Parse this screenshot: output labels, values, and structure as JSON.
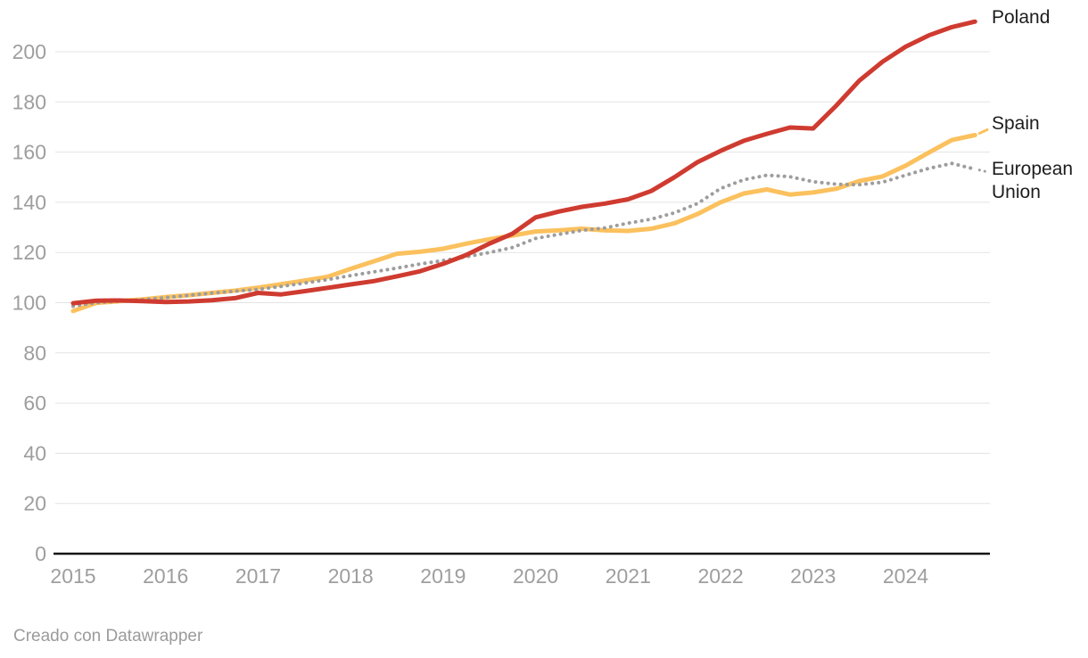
{
  "chart_data": {
    "type": "line",
    "title": "",
    "x_start": "2015-Q1",
    "x_frequency": "quarterly",
    "x_tick_labels": [
      "2015",
      "2016",
      "2017",
      "2018",
      "2019",
      "2020",
      "2021",
      "2022",
      "2023",
      "2024"
    ],
    "y_ticks": [
      0,
      20,
      40,
      60,
      80,
      100,
      120,
      140,
      160,
      180,
      200
    ],
    "ylim": [
      0,
      215
    ],
    "grid": "horizontal",
    "legend_position": "right-edge-direct-labels",
    "series": [
      {
        "name": "Poland",
        "color": "#cf3b30",
        "style": "solid",
        "values": [
          99.8,
          100.8,
          100.9,
          100.6,
          100.3,
          100.5,
          101.0,
          101.8,
          103.9,
          103.3,
          104.6,
          105.9,
          107.3,
          108.6,
          110.5,
          112.5,
          115.5,
          119.0,
          123.5,
          127.5,
          134.0,
          136.3,
          138.2,
          139.5,
          141.2,
          144.5,
          150.0,
          156.0,
          160.5,
          164.5,
          167.3,
          169.8,
          169.4,
          178.5,
          188.5,
          196.0,
          202.0,
          206.5,
          209.8,
          212.0
        ]
      },
      {
        "name": "Spain",
        "color": "#fbc15e",
        "style": "solid",
        "values": [
          96.7,
          99.9,
          100.6,
          101.3,
          102.2,
          103.0,
          103.9,
          104.8,
          106.0,
          107.4,
          108.8,
          110.3,
          113.5,
          116.5,
          119.5,
          120.3,
          121.5,
          123.5,
          125.3,
          126.8,
          128.4,
          128.8,
          129.5,
          128.8,
          128.6,
          129.5,
          131.6,
          135.3,
          140.0,
          143.5,
          145.1,
          143.1,
          143.9,
          145.4,
          148.5,
          150.3,
          154.6,
          159.8,
          164.8,
          166.8
        ]
      },
      {
        "name": "European Union",
        "color": "#9d9d9d",
        "style": "dotted",
        "values": [
          98.6,
          100.0,
          100.6,
          101.2,
          102.0,
          102.9,
          103.8,
          104.6,
          105.3,
          106.5,
          107.8,
          109.2,
          110.8,
          112.3,
          113.8,
          115.4,
          116.8,
          118.3,
          120.0,
          122.0,
          125.6,
          127.2,
          128.8,
          129.8,
          131.7,
          133.3,
          135.8,
          139.5,
          145.5,
          149.0,
          150.8,
          150.2,
          148.2,
          147.2,
          147.0,
          148.0,
          150.8,
          153.5,
          155.5,
          153.2
        ]
      }
    ]
  },
  "colors": {
    "poland": "#cf3b30",
    "spain": "#fbc15e",
    "european_union": "#9d9d9d",
    "gridline": "#e3e3e3",
    "baseline": "#151515",
    "axis_text": "#9e9e9e",
    "series_label_text": "#1d1d1d"
  },
  "footer": {
    "credit": "Creado con Datawrapper"
  }
}
